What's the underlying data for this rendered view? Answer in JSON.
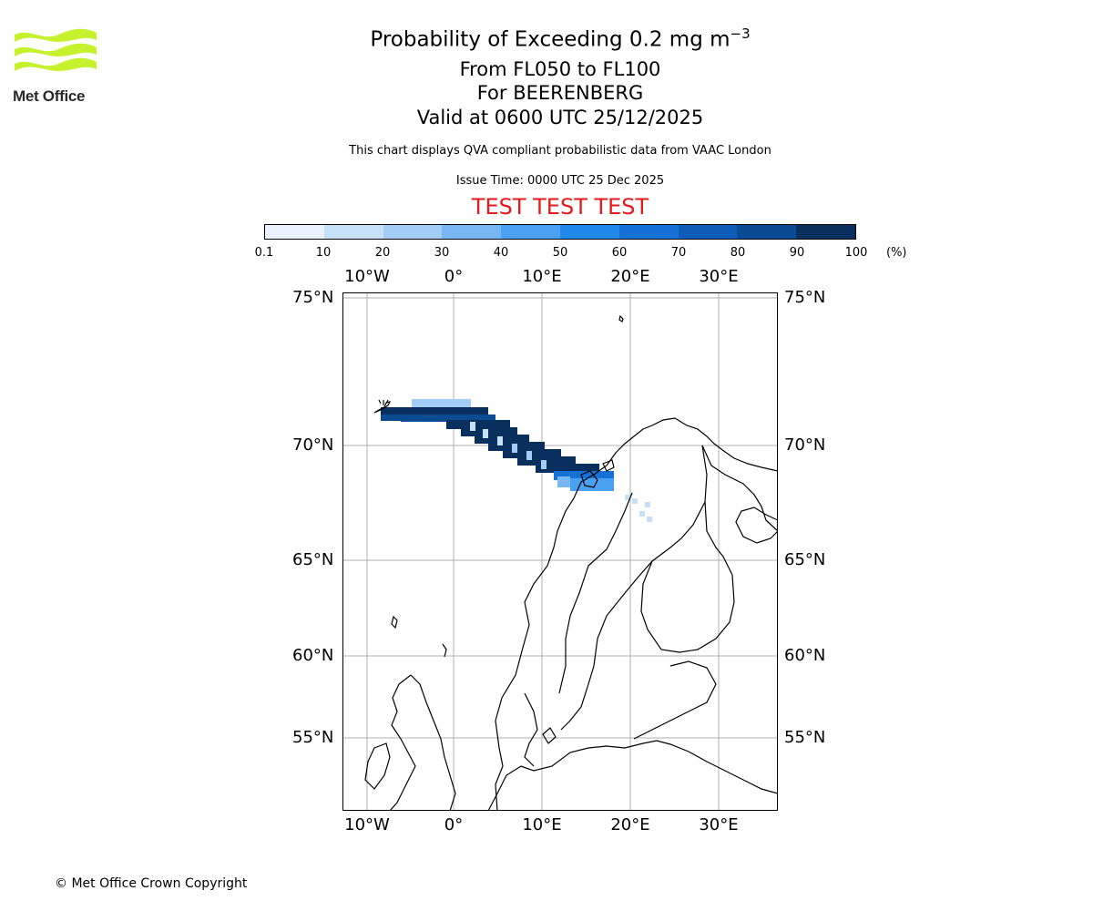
{
  "title": {
    "prefix": "Probability of Exceeding 0.2 mg m",
    "exponent": "−3"
  },
  "subtitle": {
    "levels": "From FL050 to FL100",
    "volcano": "For BEERENBERG",
    "valid": "Valid at 0600 UTC 25/12/2025"
  },
  "disclaimer": "This chart displays QVA compliant probabilistic data from VAAC London",
  "issue_time": "Issue Time: 0000 UTC 25 Dec 2025",
  "test_banner": "TEST TEST TEST",
  "colorbar": {
    "ticks": [
      "0.1",
      "10",
      "20",
      "30",
      "40",
      "50",
      "60",
      "70",
      "80",
      "90",
      "100"
    ],
    "unit": "(%)",
    "colors": [
      "#eaf3fd",
      "#c6e1f7",
      "#a3cdf5",
      "#78b7f4",
      "#4aa1f1",
      "#1f88e8",
      "#1571d6",
      "#0d5db8",
      "#0a4b93",
      "#082f5d"
    ]
  },
  "map": {
    "lon_labels": [
      "10°W",
      "0°",
      "10°E",
      "20°E",
      "30°E"
    ],
    "lat_labels": [
      "75°N",
      "70°N",
      "65°N",
      "60°N",
      "55°N"
    ]
  },
  "logo_text": "Met Office",
  "copyright": "© Met Office Crown Copyright"
}
